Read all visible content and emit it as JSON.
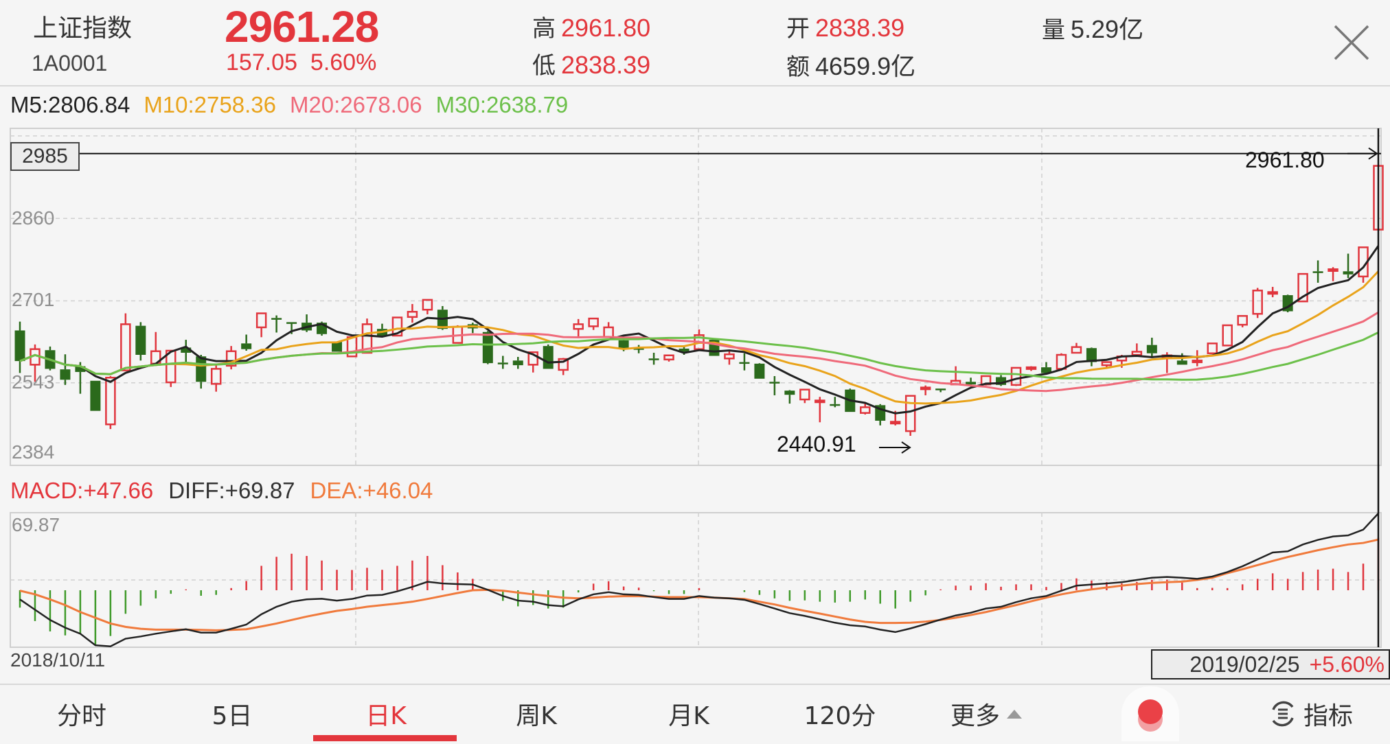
{
  "header": {
    "name": "上证指数",
    "code": "1A0001",
    "price": "2961.28",
    "change": "157.05",
    "change_pct": "5.60%",
    "stats": [
      {
        "label": "高",
        "value": "2961.80",
        "color": "#e3363c"
      },
      {
        "label": "低",
        "value": "2838.39",
        "color": "#e3363c"
      },
      {
        "label": "开",
        "value": "2838.39",
        "color": "#e3363c"
      },
      {
        "label": "额",
        "value": "4659.9亿",
        "color": "#333333"
      },
      {
        "label": "量",
        "value": "5.29亿",
        "color": "#333333"
      }
    ],
    "close_icon": "close-x-icon"
  },
  "ma_legend": [
    {
      "text": "M5:2806.84",
      "color": "#222222"
    },
    {
      "text": "M10:2758.36",
      "color": "#e9a31b"
    },
    {
      "text": "M20:2678.06",
      "color": "#ef6a7a"
    },
    {
      "text": "M30:2638.79",
      "color": "#6cc04a"
    }
  ],
  "macd_legend": [
    {
      "text": "MACD:+47.66",
      "color": "#e3363c"
    },
    {
      "text": "DIFF:+69.87",
      "color": "#333333"
    },
    {
      "text": "DEA:+46.04",
      "color": "#f07a3c"
    }
  ],
  "chart_data": [
    {
      "type": "candlestick",
      "ylim": [
        2384,
        3019
      ],
      "y_ticks": [
        "2860",
        "2701",
        "2543",
        "2384"
      ],
      "crosshair_price": "2985",
      "high_annotation": "2961.80",
      "low_annotation": "2440.91",
      "up_color": "#e0353d",
      "down_color": "#2b6a1c",
      "ma_periods": [
        5,
        10,
        20,
        30
      ],
      "ma_colors": [
        "#222222",
        "#e9a31b",
        "#ef6a7a",
        "#6cc04a"
      ],
      "ohlc": [
        [
          2644,
          2661,
          2562,
          2585
        ],
        [
          2578,
          2617,
          2545,
          2608
        ],
        [
          2606,
          2613,
          2567,
          2570
        ],
        [
          2569,
          2598,
          2539,
          2549
        ],
        [
          2575,
          2583,
          2522,
          2564
        ],
        [
          2547,
          2547,
          2489,
          2489
        ],
        [
          2463,
          2556,
          2454,
          2553
        ],
        [
          2567,
          2677,
          2567,
          2656
        ],
        [
          2653,
          2660,
          2586,
          2597
        ],
        [
          2580,
          2641,
          2580,
          2604
        ],
        [
          2544,
          2605,
          2535,
          2605
        ],
        [
          2611,
          2626,
          2583,
          2601
        ],
        [
          2594,
          2597,
          2532,
          2545
        ],
        [
          2541,
          2580,
          2526,
          2570
        ],
        [
          2576,
          2614,
          2569,
          2604
        ],
        [
          2619,
          2636,
          2605,
          2608
        ],
        [
          2650,
          2677,
          2631,
          2677
        ],
        [
          2668,
          2673,
          2640,
          2666
        ],
        [
          2660,
          2660,
          2637,
          2658
        ],
        [
          2659,
          2675,
          2641,
          2644
        ],
        [
          2659,
          2661,
          2634,
          2637
        ],
        [
          2622,
          2622,
          2603,
          2603
        ],
        [
          2594,
          2631,
          2594,
          2631
        ],
        [
          2601,
          2667,
          2601,
          2656
        ],
        [
          2647,
          2657,
          2633,
          2633
        ],
        [
          2634,
          2669,
          2634,
          2669
        ],
        [
          2670,
          2695,
          2659,
          2680
        ],
        [
          2684,
          2703,
          2675,
          2703
        ],
        [
          2684,
          2691,
          2645,
          2647
        ],
        [
          2620,
          2654,
          2619,
          2651
        ],
        [
          2656,
          2659,
          2639,
          2648
        ],
        [
          2641,
          2643,
          2579,
          2581
        ],
        [
          2582,
          2595,
          2570,
          2581
        ],
        [
          2586,
          2593,
          2570,
          2577
        ],
        [
          2578,
          2602,
          2563,
          2602
        ],
        [
          2614,
          2617,
          2570,
          2570
        ],
        [
          2568,
          2591,
          2558,
          2589
        ],
        [
          2647,
          2666,
          2632,
          2656
        ],
        [
          2652,
          2667,
          2645,
          2667
        ],
        [
          2631,
          2660,
          2631,
          2650
        ],
        [
          2625,
          2626,
          2604,
          2609
        ],
        [
          2610,
          2616,
          2600,
          2608
        ],
        [
          2590,
          2601,
          2578,
          2588
        ],
        [
          2588,
          2596,
          2584,
          2596
        ],
        [
          2609,
          2612,
          2597,
          2603
        ],
        [
          2608,
          2646,
          2606,
          2635
        ],
        [
          2626,
          2628,
          2595,
          2595
        ],
        [
          2590,
          2607,
          2578,
          2598
        ],
        [
          2583,
          2600,
          2567,
          2581
        ],
        [
          2580,
          2581,
          2551,
          2551
        ],
        [
          2545,
          2556,
          2519,
          2543
        ],
        [
          2528,
          2529,
          2503,
          2520
        ],
        [
          2511,
          2530,
          2504,
          2530
        ],
        [
          2507,
          2516,
          2467,
          2509
        ],
        [
          2502,
          2516,
          2496,
          2500
        ],
        [
          2530,
          2532,
          2487,
          2487
        ],
        [
          2485,
          2506,
          2482,
          2496
        ],
        [
          2500,
          2502,
          2461,
          2470
        ],
        [
          2466,
          2489,
          2461,
          2468
        ],
        [
          2450,
          2518,
          2440.91,
          2518
        ],
        [
          2532,
          2538,
          2519,
          2534
        ],
        [
          2532,
          2532,
          2525,
          2530
        ],
        [
          2540,
          2575,
          2540,
          2547
        ],
        [
          2545,
          2553,
          2537,
          2540
        ],
        [
          2540,
          2556,
          2538,
          2556
        ],
        [
          2554,
          2558,
          2537,
          2539
        ],
        [
          2539,
          2572,
          2537,
          2572
        ],
        [
          2571,
          2575,
          2566,
          2573
        ],
        [
          2573,
          2583,
          2561,
          2562
        ],
        [
          2570,
          2600,
          2569,
          2597
        ],
        [
          2601,
          2620,
          2600,
          2612
        ],
        [
          2610,
          2611,
          2575,
          2583
        ],
        [
          2577,
          2583,
          2573,
          2583
        ],
        [
          2586,
          2597,
          2572,
          2594
        ],
        [
          2597,
          2619,
          2596,
          2603
        ],
        [
          2616,
          2630,
          2593,
          2600
        ],
        [
          2594,
          2602,
          2562,
          2596
        ],
        [
          2586,
          2600,
          2578,
          2578
        ],
        [
          2584,
          2606,
          2575,
          2586
        ],
        [
          2600,
          2619,
          2599,
          2619
        ],
        [
          2615,
          2654,
          2614,
          2654
        ],
        [
          2655,
          2672,
          2650,
          2672
        ],
        [
          2676,
          2726,
          2668,
          2721
        ],
        [
          2716,
          2728,
          2708,
          2718
        ],
        [
          2712,
          2713,
          2679,
          2681
        ],
        [
          2700,
          2753,
          2700,
          2753
        ],
        [
          2758,
          2779,
          2736,
          2756
        ],
        [
          2760,
          2766,
          2739,
          2762
        ],
        [
          2758,
          2792,
          2745,
          2752
        ],
        [
          2748,
          2803,
          2736,
          2804.23
        ],
        [
          2838.39,
          2961.8,
          2838.39,
          2961.28
        ]
      ]
    },
    {
      "type": "macd",
      "top_label": "69.87",
      "diff_color": "#222222",
      "dea_color": "#f07a3c",
      "diff": [
        -8.3,
        -17.7,
        -27,
        -34,
        -39.5,
        -50,
        -51,
        -44,
        -42,
        -39.5,
        -37.4,
        -35.4,
        -38.5,
        -38.5,
        -35,
        -31.2,
        -21.8,
        -15,
        -10.4,
        -8.3,
        -7.7,
        -9.4,
        -7.9,
        -4.8,
        -4.2,
        -1,
        3.1,
        7.7,
        6.2,
        5.6,
        5.2,
        0.4,
        -5.2,
        -9.4,
        -10.4,
        -13.5,
        -14.6,
        -8.3,
        -3.7,
        -1.7,
        -3.7,
        -4.2,
        -6.2,
        -7.9,
        -7.9,
        -5.2,
        -6.7,
        -7.3,
        -8.7,
        -12.5,
        -16.6,
        -20.8,
        -23.3,
        -26.4,
        -29.5,
        -31.8,
        -32.9,
        -35.8,
        -38,
        -34.7,
        -30.8,
        -26.6,
        -22.9,
        -20.4,
        -16.6,
        -15,
        -10.8,
        -7.3,
        -5.2,
        -0.4,
        4.2,
        5.2,
        6.2,
        7.3,
        9.4,
        11.4,
        12.1,
        11.4,
        10.4,
        12.5,
        16.6,
        21.8,
        28.1,
        34.3,
        35.4,
        41.6,
        45.8,
        48.9,
        49.9,
        55.1,
        69.87
      ],
      "dea": [
        -0.4,
        -3.7,
        -8.3,
        -13.5,
        -19.8,
        -25,
        -30.2,
        -33.3,
        -35,
        -35.8,
        -35.8,
        -35.8,
        -36,
        -36.4,
        -36,
        -35.4,
        -32.9,
        -30.2,
        -27,
        -23.9,
        -21.2,
        -18.7,
        -17.1,
        -15,
        -13.5,
        -12.1,
        -10.4,
        -7.9,
        -5.2,
        -2.5,
        0,
        0.4,
        -0.4,
        -2.1,
        -3.7,
        -5.2,
        -6.7,
        -7.3,
        -6.7,
        -5.8,
        -5.4,
        -5.4,
        -5.8,
        -6.2,
        -6.2,
        -6.2,
        -6.7,
        -7.3,
        -7.9,
        -10.4,
        -12.9,
        -16,
        -18.7,
        -21.2,
        -23.9,
        -26.6,
        -28.7,
        -29.7,
        -29.7,
        -29.5,
        -28.5,
        -27,
        -25,
        -22.5,
        -19.8,
        -16.6,
        -13.5,
        -10,
        -6.7,
        -3.7,
        -1.2,
        0.8,
        2.5,
        4.2,
        5.6,
        6.7,
        7.3,
        7.9,
        9.4,
        11.4,
        15.6,
        19.1,
        22.9,
        26.6,
        30.2,
        33.3,
        36.4,
        39.1,
        41.6,
        43.0,
        46.04
      ]
    }
  ],
  "dates": {
    "start": "2018/10/11",
    "selected": "2019/02/25",
    "selected_change": "+5.60%"
  },
  "tabs": [
    {
      "label": "分时",
      "active": false
    },
    {
      "label": "5日",
      "active": false
    },
    {
      "label": "日K",
      "active": true
    },
    {
      "label": "周K",
      "active": false
    },
    {
      "label": "月K",
      "active": false
    },
    {
      "label": "120分",
      "active": false
    },
    {
      "label": "更多",
      "active": false,
      "icon": "triangle-up-icon"
    }
  ],
  "record_button_icon": "red-dot-icon",
  "indicator": {
    "label": "指标",
    "icon": "indicator-switch-icon"
  }
}
